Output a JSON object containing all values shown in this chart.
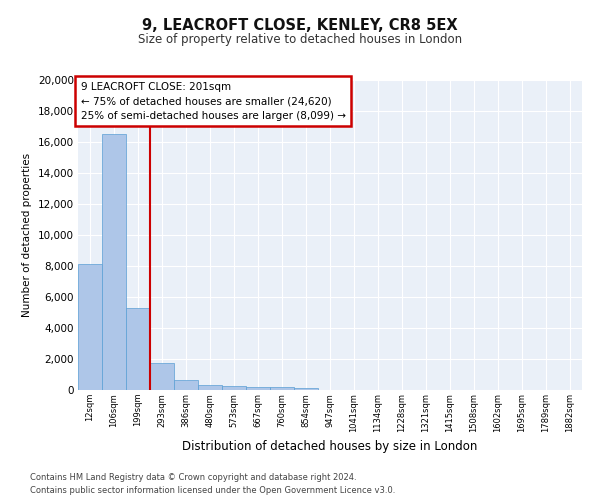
{
  "title": "9, LEACROFT CLOSE, KENLEY, CR8 5EX",
  "subtitle": "Size of property relative to detached houses in London",
  "xlabel": "Distribution of detached houses by size in London",
  "ylabel": "Number of detached properties",
  "bin_labels": [
    "12sqm",
    "106sqm",
    "199sqm",
    "293sqm",
    "386sqm",
    "480sqm",
    "573sqm",
    "667sqm",
    "760sqm",
    "854sqm",
    "947sqm",
    "1041sqm",
    "1134sqm",
    "1228sqm",
    "1321sqm",
    "1415sqm",
    "1508sqm",
    "1602sqm",
    "1695sqm",
    "1789sqm",
    "1882sqm"
  ],
  "bar_heights": [
    8100,
    16500,
    5300,
    1750,
    650,
    350,
    250,
    200,
    200,
    100,
    0,
    0,
    0,
    0,
    0,
    0,
    0,
    0,
    0,
    0,
    0
  ],
  "bar_color": "#aec6e8",
  "bar_edge_color": "#5a9fd4",
  "background_color": "#eaf0f8",
  "grid_color": "#ffffff",
  "vline_color": "#cc0000",
  "vline_pos": 2.5,
  "ann_box_edge_color": "#cc0000",
  "annotation_text": "9 LEACROFT CLOSE: 201sqm\n← 75% of detached houses are smaller (24,620)\n25% of semi-detached houses are larger (8,099) →",
  "ylim": [
    0,
    20000
  ],
  "yticks": [
    0,
    2000,
    4000,
    6000,
    8000,
    10000,
    12000,
    14000,
    16000,
    18000,
    20000
  ],
  "footer_line1": "Contains HM Land Registry data © Crown copyright and database right 2024.",
  "footer_line2": "Contains public sector information licensed under the Open Government Licence v3.0."
}
